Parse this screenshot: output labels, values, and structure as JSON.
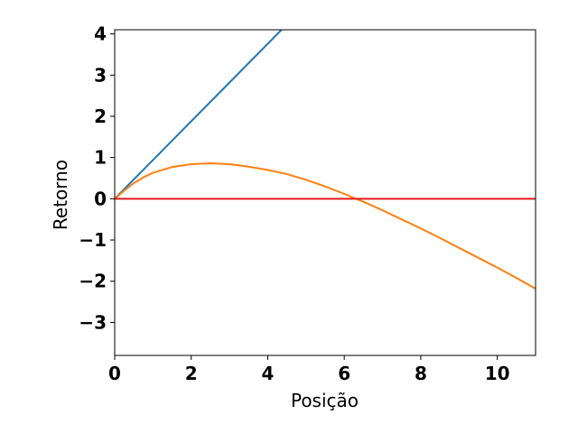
{
  "chart_data": {
    "type": "line",
    "title": "",
    "xlabel": "Posição",
    "ylabel": "Retorno",
    "xlim": [
      0,
      11
    ],
    "ylim": [
      -3.8,
      4.1
    ],
    "xticks": [
      0,
      2,
      4,
      6,
      8,
      10
    ],
    "xtick_labels": [
      "0",
      "2",
      "4",
      "6",
      "8",
      "10"
    ],
    "yticks": [
      -3,
      -2,
      -1,
      0,
      1,
      2,
      3,
      4
    ],
    "ytick_labels": [
      "−3",
      "−2",
      "−1",
      "0",
      "1",
      "2",
      "3",
      "4"
    ],
    "grid": false,
    "legend": "none",
    "series": [
      {
        "color": "#1f77b4",
        "x": [
          0,
          1,
          2,
          3,
          4,
          4.36
        ],
        "y": [
          0,
          0.94,
          1.88,
          2.82,
          3.76,
          4.1
        ]
      },
      {
        "color": "#ff7f0e",
        "x": [
          0,
          0.25,
          0.5,
          0.75,
          1,
          1.5,
          2,
          2.5,
          3,
          3.5,
          4,
          4.5,
          5,
          5.5,
          6,
          6.3,
          6.5,
          7,
          7.5,
          8,
          8.5,
          9,
          9.5,
          10,
          10.5,
          11
        ],
        "y": [
          0,
          0.2,
          0.38,
          0.52,
          0.63,
          0.77,
          0.84,
          0.86,
          0.84,
          0.78,
          0.7,
          0.6,
          0.46,
          0.3,
          0.12,
          0.0,
          -0.07,
          -0.28,
          -0.5,
          -0.72,
          -0.95,
          -1.19,
          -1.43,
          -1.67,
          -1.92,
          -2.18
        ]
      },
      {
        "color": "#e41a1c",
        "x": [
          0,
          11
        ],
        "y": [
          0,
          0
        ]
      }
    ]
  }
}
